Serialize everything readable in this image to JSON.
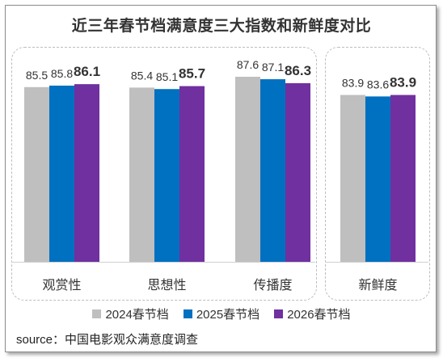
{
  "title": "近三年春节档满意度三大指数和新鲜度对比",
  "source": "source：中国电影观众满意度调查",
  "chart_data": {
    "type": "bar",
    "title": "近三年春节档满意度三大指数和新鲜度对比",
    "categories": [
      "观赏性",
      "思想性",
      "传播度",
      "新鲜度"
    ],
    "series": [
      {
        "name": "2024春节档",
        "color": "#bfbfbf",
        "values": [
          85.5,
          85.4,
          87.6,
          83.9
        ]
      },
      {
        "name": "2025春节档",
        "color": "#0070c0",
        "values": [
          85.8,
          85.1,
          87.1,
          83.6
        ]
      },
      {
        "name": "2026春节档",
        "color": "#7030a0",
        "values": [
          86.1,
          85.7,
          86.3,
          83.9
        ]
      }
    ],
    "value_labels": [
      [
        "85.5",
        "85.8",
        "86.1"
      ],
      [
        "85.4",
        "85.1",
        "85.7"
      ],
      [
        "87.6",
        "87.1",
        "86.3"
      ],
      [
        "83.9",
        "83.6",
        "83.9"
      ]
    ],
    "highlight_series": "2026春节档",
    "legend_position": "bottom",
    "grid": false,
    "ylim": [
      50,
      90
    ],
    "xlabel": "",
    "ylabel": ""
  }
}
